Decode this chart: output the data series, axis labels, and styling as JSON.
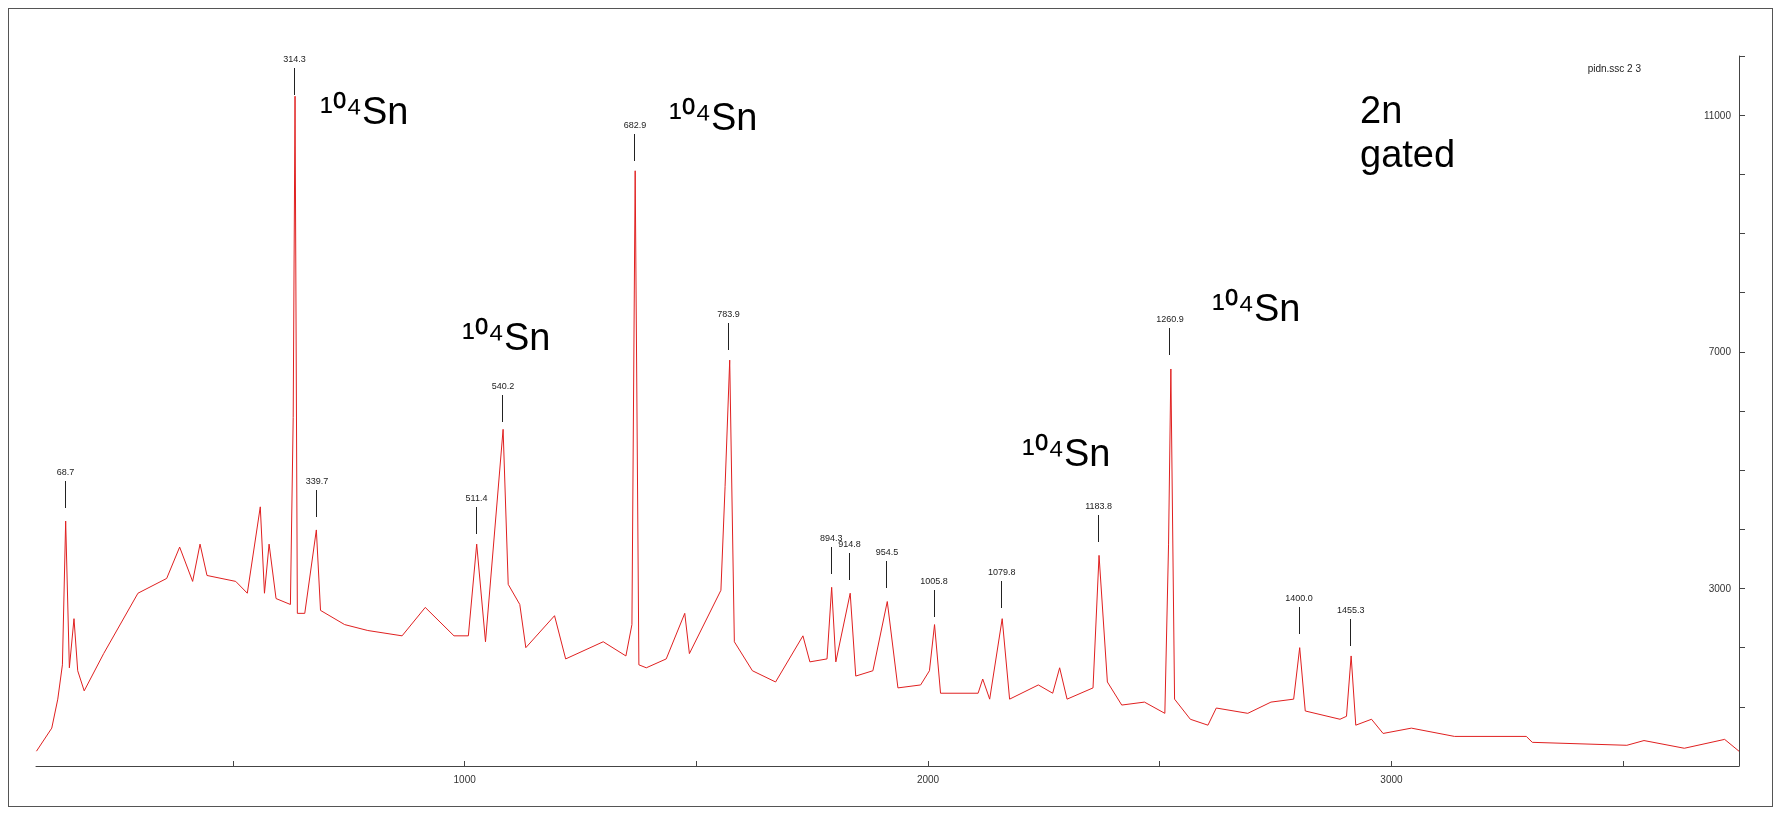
{
  "chart_data": {
    "type": "line",
    "color": "#e02020",
    "x": [
      76,
      109,
      122,
      132,
      139,
      147,
      157,
      165,
      179,
      221,
      295,
      357,
      385,
      413,
      429,
      444,
      506,
      531,
      559,
      568,
      578,
      593,
      624,
      630,
      634,
      639,
      655,
      680,
      689,
      741,
      791,
      865,
      915,
      977,
      1008,
      1026,
      1045,
      1083,
      1094,
      1119,
      1132,
      1194,
      1218,
      1299,
      1348,
      1361,
      1368,
      1376,
      1392,
      1435,
      1475,
      1485,
      1553,
      1562,
      1572,
      1582,
      1621,
      1671,
      1730,
      1745,
      1782,
      1792,
      1801,
      1832,
      1844,
      1881,
      1912,
      1935,
      1984,
      2003,
      2014,
      2027,
      2108,
      2118,
      2133,
      2160,
      2176,
      2238,
      2269,
      2284,
      2300,
      2356,
      2369,
      2387,
      2418,
      2467,
      2511,
      2519,
      2524,
      2532,
      2566,
      2604,
      2622,
      2690,
      2740,
      2789,
      2802,
      2814,
      2889,
      2903,
      2913,
      2923,
      2957,
      2982,
      3043,
      3136,
      3291,
      3304,
      3508,
      3545,
      3632,
      3719,
      3750
    ],
    "values": [
      250,
      640,
      1130,
      1710,
      4140,
      1660,
      2490,
      1610,
      1270,
      1900,
      2920,
      3170,
      3700,
      3120,
      3750,
      3220,
      3120,
      2920,
      4380,
      2920,
      3750,
      2830,
      2730,
      5890,
      11320,
      2580,
      2580,
      3990,
      2630,
      2390,
      2290,
      2200,
      2680,
      2200,
      2200,
      3750,
      2100,
      5690,
      3070,
      2730,
      2000,
      2540,
      1810,
      2100,
      1860,
      2390,
      10060,
      1710,
      1660,
      1810,
      2580,
      1900,
      2970,
      4720,
      6860,
      2100,
      1610,
      1420,
      2200,
      1760,
      1810,
      3020,
      1760,
      2920,
      1520,
      1610,
      2780,
      1320,
      1370,
      1610,
      2390,
      1230,
      1230,
      1470,
      1130,
      2490,
      1130,
      1370,
      1230,
      1660,
      1130,
      1320,
      3560,
      1420,
      1030,
      1080,
      890,
      3750,
      6710,
      1130,
      790,
      690,
      980,
      890,
      1080,
      1130,
      2000,
      930,
      790,
      840,
      1860,
      690,
      790,
      550,
      640,
      500,
      500,
      400,
      350,
      430,
      300,
      450,
      250
    ],
    "xlim": [
      75,
      3750
    ],
    "xticks": [
      {
        "value": 500,
        "label": null
      },
      1000,
      {
        "value": 1500,
        "label": null
      },
      2000,
      {
        "value": 2500,
        "label": null
      },
      3000,
      {
        "value": 3500,
        "label": null
      }
    ],
    "ylim": [
      0,
      12000
    ],
    "yticks": [
      {
        "value": 1000,
        "label": null
      },
      {
        "value": 2000,
        "label": null
      },
      3000,
      {
        "value": 4000,
        "label": null
      },
      {
        "value": 5000,
        "label": null
      },
      {
        "value": 6000,
        "label": null
      },
      7000,
      {
        "value": 8000,
        "label": null
      },
      {
        "value": 9000,
        "label": null
      },
      {
        "value": 10000,
        "label": null
      },
      11000,
      {
        "value": 12000,
        "label": null
      }
    ],
    "annotations": [
      "pidn.ssc 2 3",
      "¹⁰⁴Sn",
      "¹⁰⁴Sn",
      "¹⁰⁴Sn",
      "¹⁰⁴Sn",
      "¹⁰⁴Sn",
      "2n\ngated",
      "68.7",
      "314.3",
      "339.7",
      "511.4",
      "540.2",
      "682.9",
      "783.9",
      "894.3",
      "914.8",
      "954.5",
      "1005.8",
      "1079.8",
      "1183.8",
      "1260.9",
      "1400.0",
      "1455.3"
    ]
  }
}
